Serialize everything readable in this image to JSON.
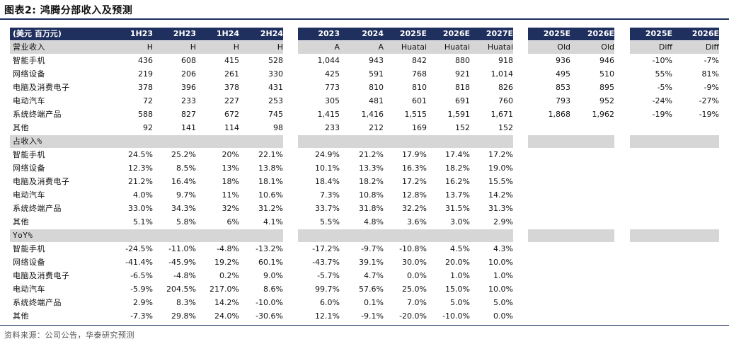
{
  "title": "图表2:  鸿腾分部收入及预测",
  "source": "资料来源：公司公告，华泰研究预测",
  "header_label": "(美元 百万元)",
  "columns": [
    "1H23",
    "2H23",
    "1H24",
    "2H24",
    "2023",
    "2024",
    "2025E",
    "2026E",
    "2027E",
    "2025E",
    "2026E",
    "2025E",
    "2026E"
  ],
  "rows": [
    {
      "label": "营业收入",
      "band": true,
      "values": [
        "H",
        "H",
        "H",
        "H",
        "A",
        "A",
        "Huatai",
        "Huatai",
        "Huatai",
        "Old",
        "Old",
        "Diff",
        "Diff"
      ]
    },
    {
      "label": "智能手机",
      "values": [
        "436",
        "608",
        "415",
        "528",
        "1,044",
        "943",
        "842",
        "880",
        "918",
        "936",
        "946",
        "-10%",
        "-7%"
      ]
    },
    {
      "label": "网络设备",
      "values": [
        "219",
        "206",
        "261",
        "330",
        "425",
        "591",
        "768",
        "921",
        "1,014",
        "495",
        "510",
        "55%",
        "81%"
      ]
    },
    {
      "label": "电脑及消费电子",
      "values": [
        "378",
        "396",
        "378",
        "431",
        "773",
        "810",
        "810",
        "818",
        "826",
        "853",
        "895",
        "-5%",
        "-9%"
      ]
    },
    {
      "label": "电动汽车",
      "values": [
        "72",
        "233",
        "227",
        "253",
        "305",
        "481",
        "601",
        "691",
        "760",
        "793",
        "952",
        "-24%",
        "-27%"
      ]
    },
    {
      "label": "系统终端产品",
      "values": [
        "588",
        "827",
        "672",
        "745",
        "1,415",
        "1,416",
        "1,515",
        "1,591",
        "1,671",
        "1,868",
        "1,962",
        "-19%",
        "-19%"
      ]
    },
    {
      "label": "其他",
      "values": [
        "92",
        "141",
        "114",
        "98",
        "233",
        "212",
        "169",
        "152",
        "152",
        "",
        "",
        "",
        ""
      ]
    },
    {
      "label": "占收入%",
      "band": true,
      "values": [
        "",
        "",
        "",
        "",
        "",
        "",
        "",
        "",
        "",
        "",
        "",
        "",
        ""
      ]
    },
    {
      "label": "智能手机",
      "values": [
        "24.5%",
        "25.2%",
        "20%",
        "22.1%",
        "24.9%",
        "21.2%",
        "17.9%",
        "17.4%",
        "17.2%",
        "",
        "",
        "",
        ""
      ]
    },
    {
      "label": "网络设备",
      "values": [
        "12.3%",
        "8.5%",
        "13%",
        "13.8%",
        "10.1%",
        "13.3%",
        "16.3%",
        "18.2%",
        "19.0%",
        "",
        "",
        "",
        ""
      ]
    },
    {
      "label": "电脑及消费电子",
      "values": [
        "21.2%",
        "16.4%",
        "18%",
        "18.1%",
        "18.4%",
        "18.2%",
        "17.2%",
        "16.2%",
        "15.5%",
        "",
        "",
        "",
        ""
      ]
    },
    {
      "label": "电动汽车",
      "values": [
        "4.0%",
        "9.7%",
        "11%",
        "10.6%",
        "7.3%",
        "10.8%",
        "12.8%",
        "13.7%",
        "14.2%",
        "",
        "",
        "",
        ""
      ]
    },
    {
      "label": "系统终端产品",
      "values": [
        "33.0%",
        "34.3%",
        "32%",
        "31.2%",
        "33.7%",
        "31.8%",
        "32.2%",
        "31.5%",
        "31.3%",
        "",
        "",
        "",
        ""
      ]
    },
    {
      "label": "其他",
      "values": [
        "5.1%",
        "5.8%",
        "6%",
        "4.1%",
        "5.5%",
        "4.8%",
        "3.6%",
        "3.0%",
        "2.9%",
        "",
        "",
        "",
        ""
      ]
    },
    {
      "label": "YoY%",
      "band": true,
      "values": [
        "",
        "",
        "",
        "",
        "",
        "",
        "",
        "",
        "",
        "",
        "",
        "",
        ""
      ]
    },
    {
      "label": "智能手机",
      "values": [
        "-24.5%",
        "-11.0%",
        "-4.8%",
        "-13.2%",
        "-17.2%",
        "-9.7%",
        "-10.8%",
        "4.5%",
        "4.3%",
        "",
        "",
        "",
        ""
      ]
    },
    {
      "label": "网络设备",
      "values": [
        "-41.4%",
        "-45.9%",
        "19.2%",
        "60.1%",
        "-43.7%",
        "39.1%",
        "30.0%",
        "20.0%",
        "10.0%",
        "",
        "",
        "",
        ""
      ]
    },
    {
      "label": "电脑及消费电子",
      "values": [
        "-6.5%",
        "-4.8%",
        "0.2%",
        "9.0%",
        "-5.7%",
        "4.7%",
        "0.0%",
        "1.0%",
        "1.0%",
        "",
        "",
        "",
        ""
      ]
    },
    {
      "label": "电动汽车",
      "values": [
        "-5.9%",
        "204.5%",
        "217.0%",
        "8.6%",
        "99.7%",
        "57.6%",
        "25.0%",
        "15.0%",
        "10.0%",
        "",
        "",
        "",
        ""
      ]
    },
    {
      "label": "系统终端产品",
      "values": [
        "2.9%",
        "8.3%",
        "14.2%",
        "-10.0%",
        "6.0%",
        "0.1%",
        "7.0%",
        "5.0%",
        "5.0%",
        "",
        "",
        "",
        ""
      ]
    },
    {
      "label": "其他",
      "values": [
        "-7.3%",
        "29.8%",
        "24.0%",
        "-30.6%",
        "12.1%",
        "-9.1%",
        "-20.0%",
        "-10.0%",
        "0.0%",
        "",
        "",
        "",
        ""
      ]
    }
  ]
}
